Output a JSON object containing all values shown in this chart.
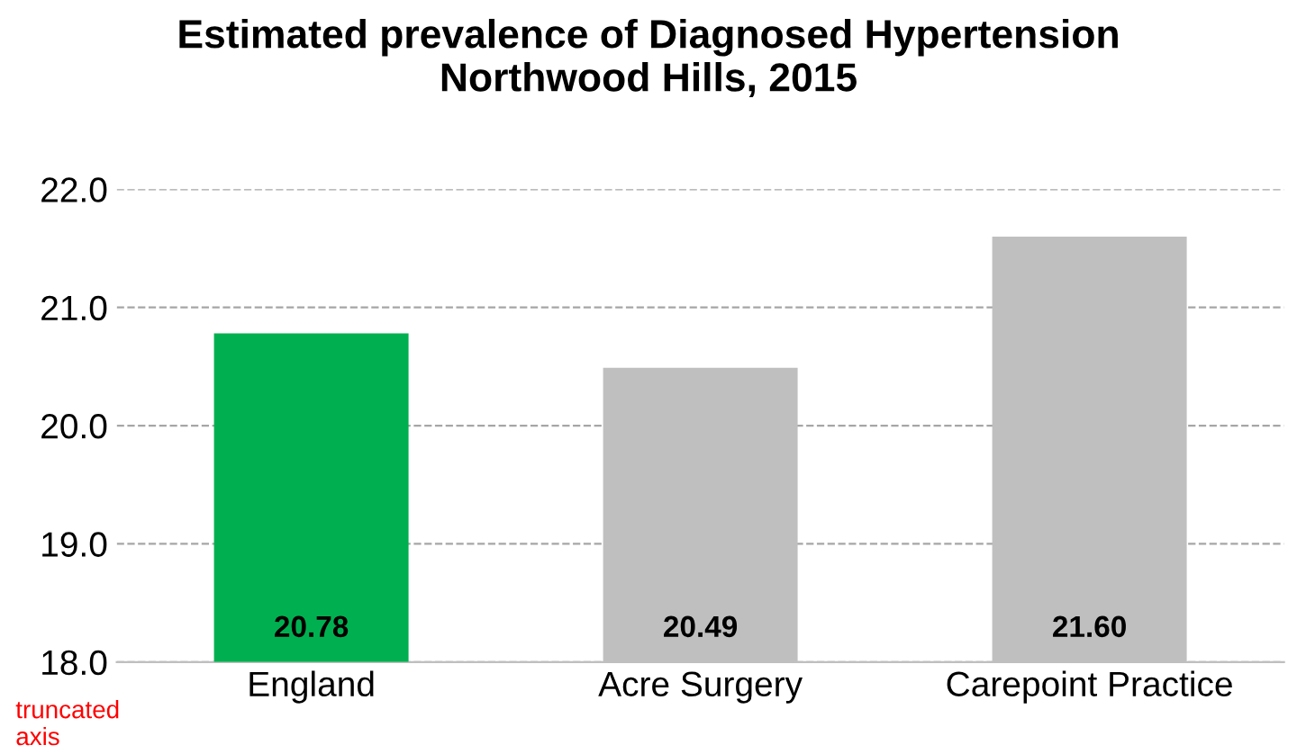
{
  "chart_data": {
    "type": "bar",
    "title": "Estimated prevalence of Diagnosed Hypertension\nNorthwood Hills, 2015",
    "categories": [
      "England",
      "Acre Surgery",
      "Carepoint Practice"
    ],
    "values": [
      20.78,
      20.49,
      21.6
    ],
    "colors": [
      "#00b050",
      "#bfbfbf",
      "#bfbfbf"
    ],
    "value_labels": [
      "20.78",
      "20.49",
      "21.60"
    ],
    "ylim": [
      18,
      22
    ],
    "yticks": [
      {
        "value": 18,
        "label": "18.0"
      },
      {
        "value": 19,
        "label": "19.0"
      },
      {
        "value": 20,
        "label": "20.0"
      },
      {
        "value": 21,
        "label": "21.0"
      },
      {
        "value": 22,
        "label": "22.0"
      }
    ],
    "grid": "y",
    "annotations": [
      "truncated\naxis"
    ]
  }
}
